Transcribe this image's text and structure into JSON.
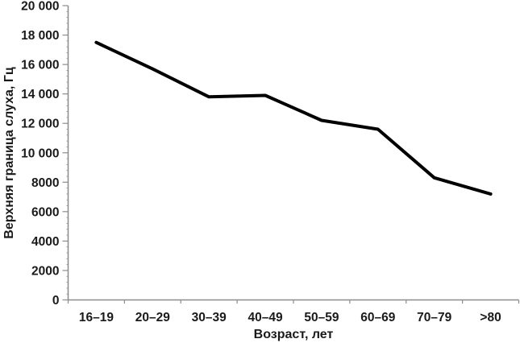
{
  "chart_data": {
    "type": "line",
    "title": "",
    "categories": [
      "16–19",
      "20–29",
      "30–39",
      "40–49",
      "50–59",
      "60–69",
      "70–79",
      ">80"
    ],
    "values": [
      17500,
      15700,
      13800,
      13900,
      12200,
      11600,
      8300,
      7200
    ],
    "series_name": "Верхняя граница слуха",
    "xlabel": "Возраст, лет",
    "ylabel": "Верхняя граница слуха, Гц",
    "ylim": [
      0,
      20000
    ],
    "ytick_step": 2000,
    "ytick_minor_step": 400,
    "ytick_labels": [
      "0",
      "2000",
      "4000",
      "6000",
      "8000",
      "10 000",
      "12 000",
      "14 000",
      "16 000",
      "18 000",
      "20 000"
    ],
    "grid": false,
    "legend": false,
    "line_color": "#000000",
    "axis_color": "#8c8c8c",
    "text_color": "#1a1a1a",
    "background_color": "#ffffff"
  }
}
